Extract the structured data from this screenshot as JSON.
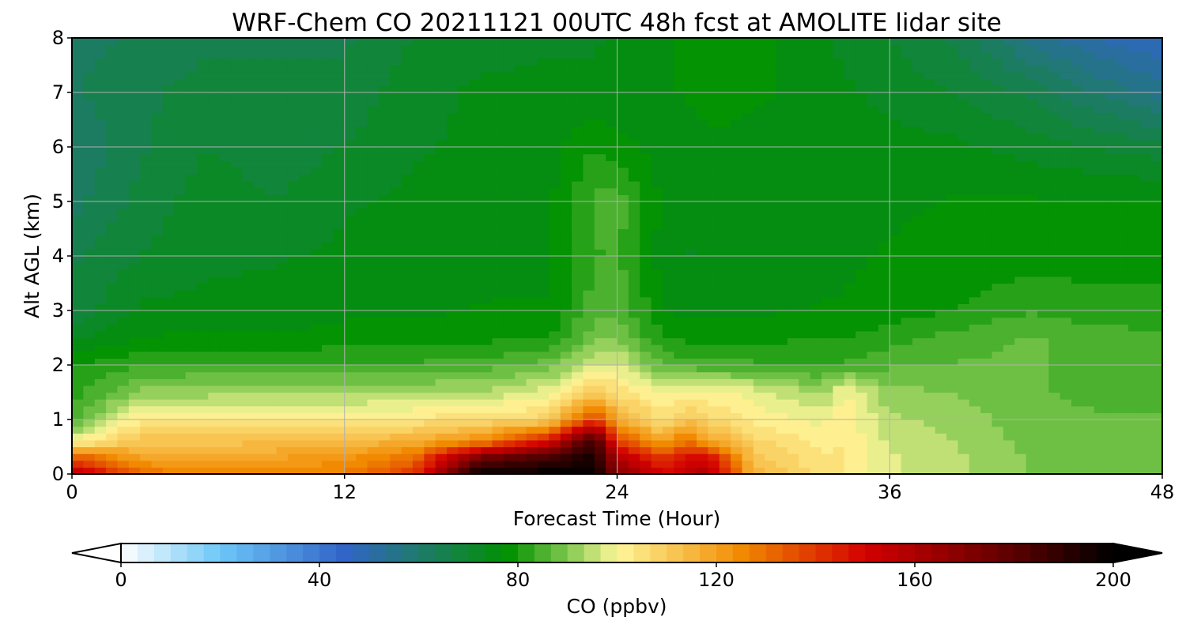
{
  "chart_data": {
    "type": "heatmap",
    "title": "WRF-Chem CO  20211121 00UTC 48h fcst at AMOLITE lidar site",
    "xlabel": "Forecast Time (Hour)",
    "ylabel": "Alt AGL (km)",
    "xlim": [
      0,
      48
    ],
    "ylim": [
      0,
      8
    ],
    "xticks": [
      "0",
      "12",
      "24",
      "36",
      "48"
    ],
    "yticks": [
      "0",
      "1",
      "2",
      "3",
      "4",
      "5",
      "6",
      "7",
      "8"
    ],
    "grid": true,
    "z_field": "CO mixing ratio",
    "x": [
      0,
      3,
      6,
      9,
      12,
      15,
      18,
      21,
      23,
      24,
      26,
      27,
      28,
      30,
      33,
      34,
      36,
      39,
      42,
      45,
      48
    ],
    "y": [
      0,
      0.3,
      0.6,
      1.0,
      1.5,
      2.0,
      2.5,
      3.0,
      4.0,
      5.0,
      6.0,
      7.0,
      8.0
    ],
    "z": [
      [
        160,
        130,
        125,
        125,
        128,
        140,
        200,
        200,
        200,
        170,
        150,
        155,
        160,
        115,
        105,
        104,
        97,
        94,
        90,
        89,
        88
      ],
      [
        135,
        120,
        118,
        120,
        122,
        130,
        175,
        185,
        195,
        160,
        140,
        150,
        150,
        112,
        104,
        104,
        97,
        94,
        90,
        89,
        88
      ],
      [
        100,
        112,
        112,
        113,
        114,
        117,
        125,
        150,
        190,
        140,
        118,
        130,
        120,
        108,
        102,
        103,
        96,
        93,
        89,
        88,
        87
      ],
      [
        85,
        103,
        103,
        104,
        104,
        104,
        106,
        108,
        140,
        118,
        105,
        112,
        108,
        102,
        99,
        102,
        94,
        92,
        88,
        87,
        87
      ],
      [
        82,
        91,
        92,
        92,
        92,
        93,
        94,
        99,
        110,
        106,
        99,
        101,
        101,
        99,
        92,
        101,
        91,
        90,
        87,
        86,
        85
      ],
      [
        80,
        83,
        84,
        84,
        84,
        84,
        85,
        88,
        96,
        98,
        86,
        85,
        84,
        84,
        83,
        84,
        86,
        87,
        87,
        86,
        85
      ],
      [
        72,
        77,
        77,
        77,
        78,
        78,
        79,
        80,
        89,
        90,
        80,
        79,
        79,
        79,
        80,
        80,
        82,
        85,
        87,
        86,
        84
      ],
      [
        68,
        74,
        75,
        75,
        76,
        76,
        77,
        77,
        85,
        86,
        77,
        76,
        76,
        76,
        77,
        77,
        78,
        80,
        83,
        81,
        80
      ],
      [
        66,
        70,
        72,
        73,
        74,
        75,
        75,
        76,
        83,
        84,
        75,
        73,
        74,
        74,
        75,
        76,
        77,
        78,
        78,
        79,
        80
      ],
      [
        62,
        68,
        72,
        70,
        73,
        74,
        75,
        76,
        84,
        85,
        76,
        74,
        74,
        75,
        76,
        76,
        76,
        77,
        77,
        77,
        77
      ],
      [
        60,
        66,
        70,
        68,
        70,
        73,
        74,
        75,
        80,
        78,
        75,
        75,
        76,
        76,
        76,
        76,
        75,
        74,
        72,
        70,
        68
      ],
      [
        63,
        66,
        68,
        68,
        68,
        72,
        74,
        74,
        74,
        74,
        76,
        77,
        78,
        77,
        76,
        74,
        72,
        70,
        66,
        60,
        55
      ],
      [
        62,
        64,
        66,
        66,
        66,
        70,
        72,
        73,
        73,
        74,
        76,
        78,
        80,
        78,
        74,
        72,
        70,
        66,
        56,
        50,
        47
      ]
    ],
    "colorbar": {
      "label": "CO  (ppbv)",
      "min": 0,
      "max": 200,
      "ticks": [
        "0",
        "40",
        "80",
        "120",
        "160",
        "200"
      ],
      "extend": "both",
      "colors": [
        {
          "v": 0,
          "c": "#ffffff"
        },
        {
          "v": 20,
          "c": "#6cc7f7"
        },
        {
          "v": 45,
          "c": "#3165c8"
        },
        {
          "v": 60,
          "c": "#1f7a6c"
        },
        {
          "v": 78,
          "c": "#009100"
        },
        {
          "v": 90,
          "c": "#80c850"
        },
        {
          "v": 100,
          "c": "#fff79a"
        },
        {
          "v": 125,
          "c": "#f18a00"
        },
        {
          "v": 150,
          "c": "#d40000"
        },
        {
          "v": 175,
          "c": "#700000"
        },
        {
          "v": 200,
          "c": "#000000"
        }
      ]
    }
  }
}
